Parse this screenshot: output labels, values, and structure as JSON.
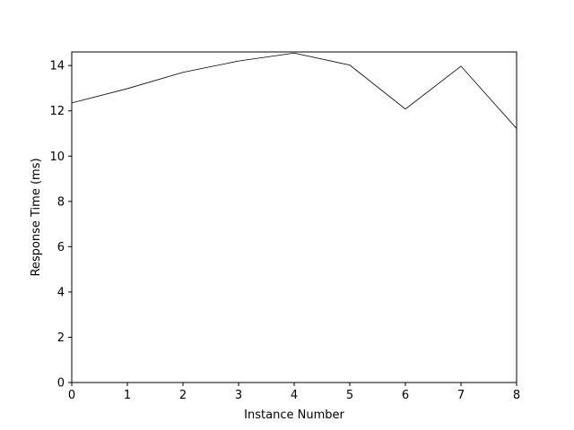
{
  "chart_data": {
    "type": "line",
    "title": "",
    "xlabel": "Instance Number",
    "ylabel": "Response Time (ms)",
    "xlim": [
      0,
      8
    ],
    "ylim": [
      0,
      14.6
    ],
    "x_ticks": [
      0,
      1,
      2,
      3,
      4,
      5,
      6,
      7,
      8
    ],
    "y_ticks": [
      0,
      2,
      4,
      6,
      8,
      10,
      12,
      14
    ],
    "grid": false,
    "legend": "none",
    "series": [
      {
        "color": "#000000",
        "x": [
          0,
          1,
          2,
          3,
          4,
          5,
          6,
          7,
          8
        ],
        "y": [
          12.35,
          12.98,
          13.7,
          14.2,
          14.55,
          14.02,
          12.08,
          13.97,
          11.22
        ]
      }
    ]
  }
}
